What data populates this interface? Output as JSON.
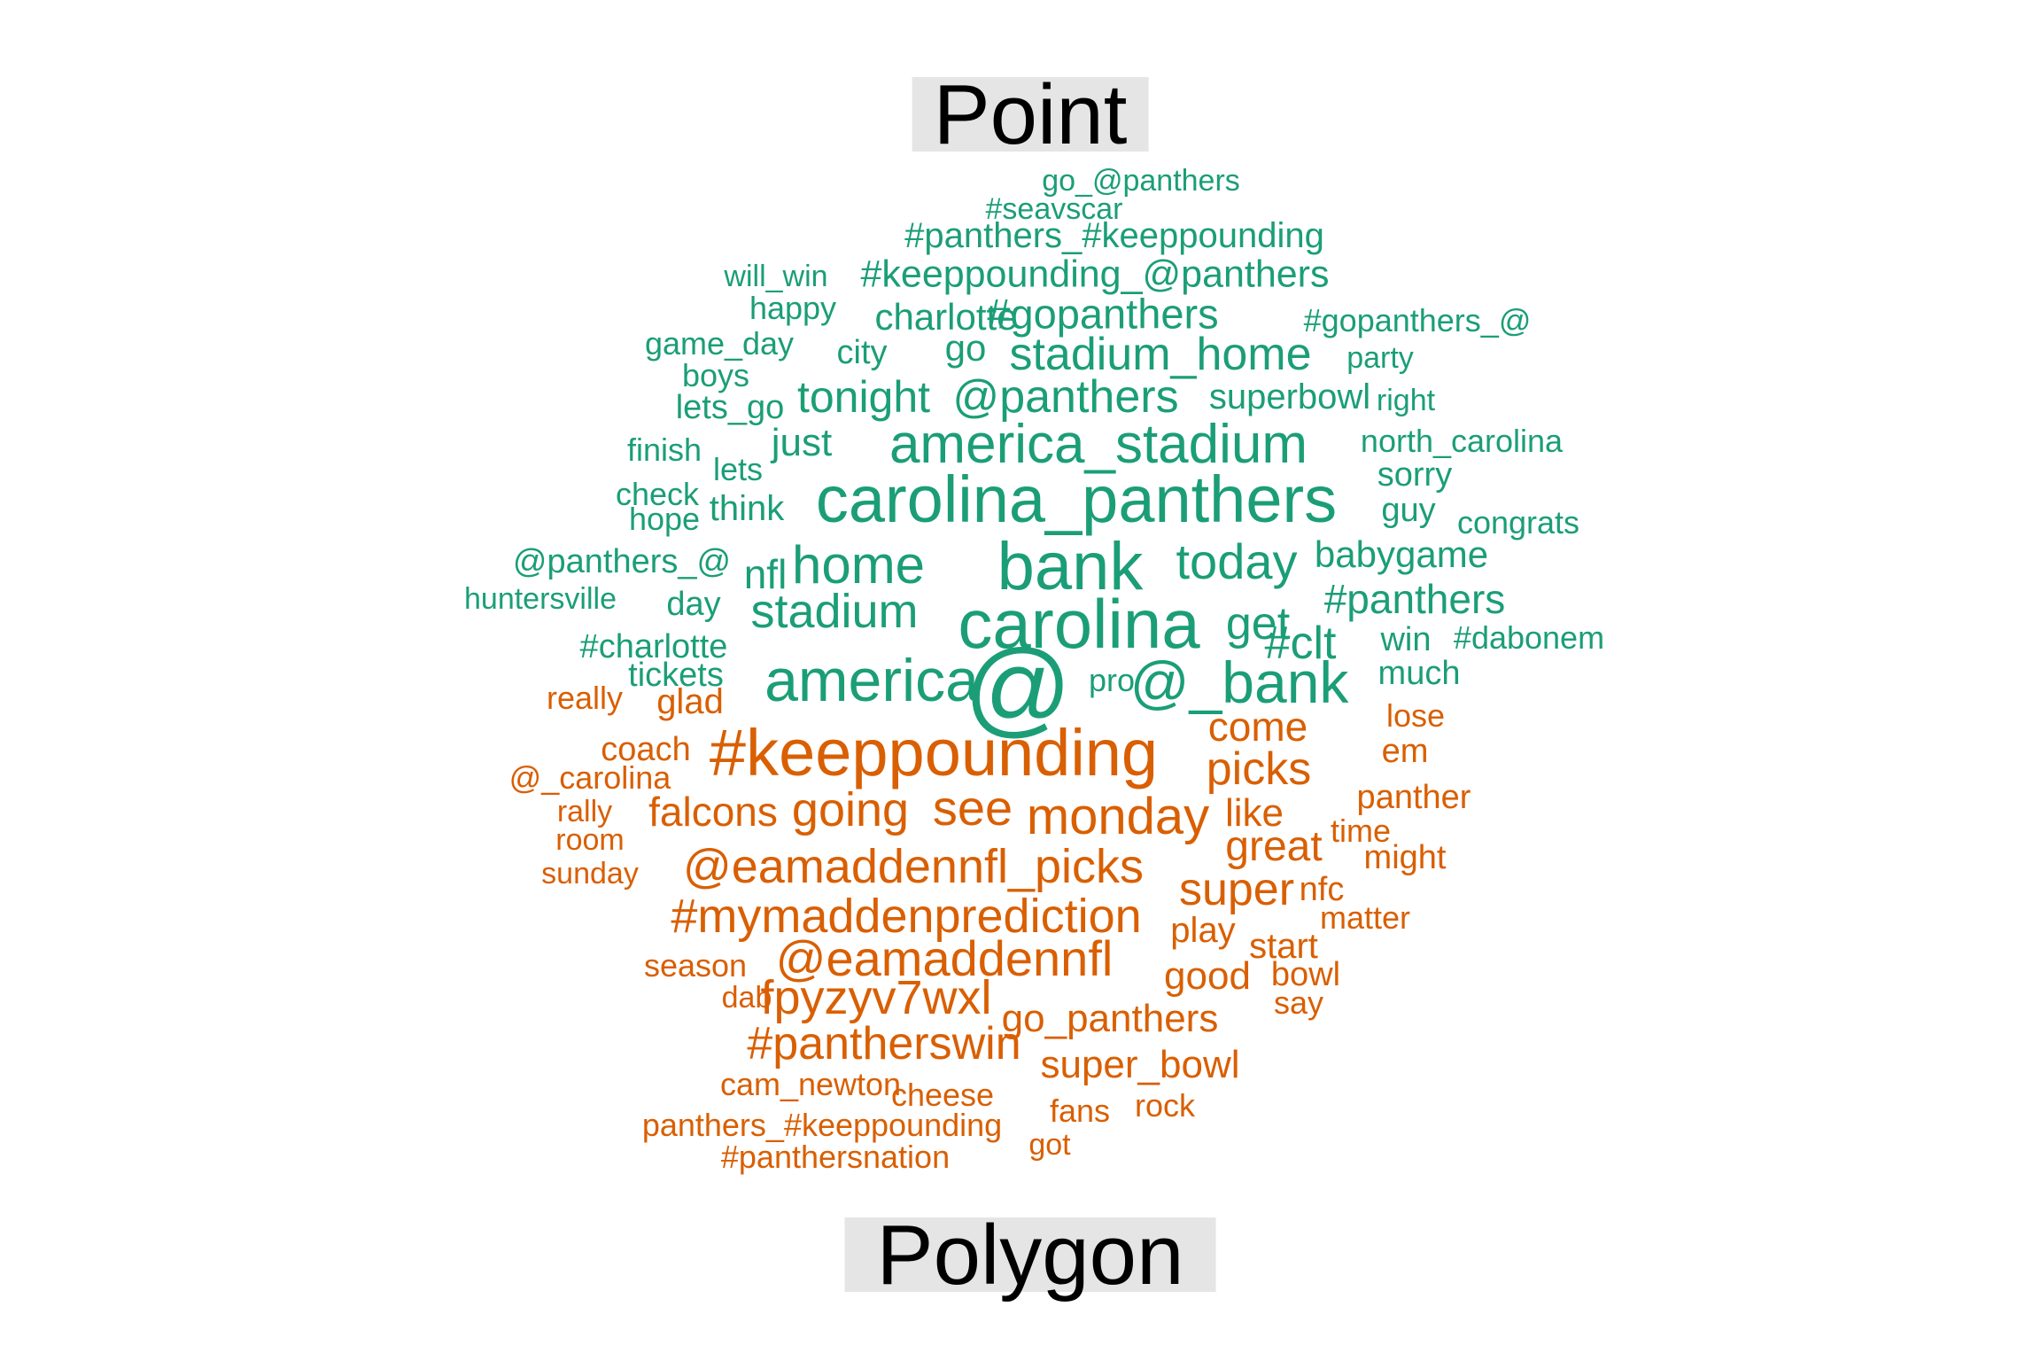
{
  "labels": {
    "top": "Point",
    "bottom": "Polygon"
  },
  "colors": {
    "point": "#1b9e77",
    "polygon": "#d95f02"
  },
  "groups": [
    {
      "name": "point",
      "words": [
        "go_@panthers",
        "#seavscar",
        "#panthers_#keeppounding",
        "will_win",
        "#keeppounding_@panthers",
        "happy",
        "charlotte",
        "#gopanthers",
        "#gopanthers_@",
        "game_day",
        "city",
        "go",
        "stadium_home",
        "party",
        "boys",
        "lets_go",
        "tonight",
        "@panthers",
        "superbowl",
        "right",
        "finish",
        "just",
        "america_stadium",
        "north_carolina",
        "lets",
        "sorry",
        "check",
        "hope",
        "think",
        "carolina_panthers",
        "guy",
        "congrats",
        "@panthers_@",
        "nfl",
        "home",
        "bank",
        "today",
        "babygame",
        "huntersville",
        "day",
        "stadium",
        "carolina",
        "#panthers",
        "get",
        "#charlotte",
        "#clt",
        "win",
        "#dabonem",
        "tickets",
        "america",
        "@",
        "pro",
        "@_bank",
        "much"
      ]
    },
    {
      "name": "polygon",
      "words": [
        "really",
        "glad",
        "come",
        "lose",
        "coach",
        "#keeppounding",
        "em",
        "picks",
        "@_carolina",
        "panther",
        "rally",
        "falcons",
        "going",
        "see",
        "monday",
        "like",
        "room",
        "time",
        "great",
        "sunday",
        "@eamaddennfl_picks",
        "might",
        "super",
        "nfc",
        "#mymaddenprediction",
        "matter",
        "play",
        "start",
        "season",
        "@eamaddennfl",
        "good",
        "bowl",
        "dab",
        "fpyzyv7wxl",
        "say",
        "go_panthers",
        "#pantherswin",
        "super_bowl",
        "cam_newton",
        "cheese",
        "fans",
        "rock",
        "panthers_#keeppounding",
        "got",
        "#panthersnation"
      ]
    }
  ]
}
